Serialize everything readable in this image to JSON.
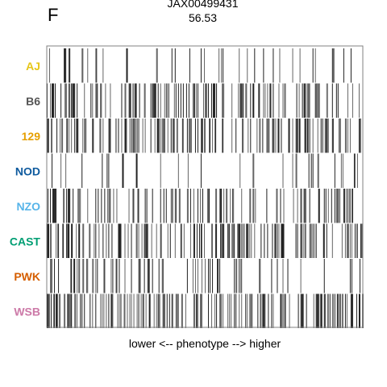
{
  "panel_letter": "F",
  "title_line1": "JAX00499431",
  "title_line2": "56.53",
  "chart_data": {
    "type": "heatmap",
    "title": "JAX00499431",
    "subtitle": "56.53",
    "xlabel": "lower <-- phenotype --> higher",
    "ylabel": "",
    "grid": false,
    "legend": "none",
    "n_columns": 390,
    "rows": [
      {
        "name": "AJ",
        "color": "#E6C619",
        "seed": 11,
        "density": 0.08
      },
      {
        "name": "B6",
        "color": "#555555",
        "seed": 23,
        "density": 0.26
      },
      {
        "name": "129",
        "color": "#E69F00",
        "seed": 37,
        "density": 0.3
      },
      {
        "name": "NOD",
        "color": "#0E5A9E",
        "seed": 41,
        "density": 0.07
      },
      {
        "name": "NZO",
        "color": "#56B4E9",
        "seed": 53,
        "density": 0.22
      },
      {
        "name": "CAST",
        "color": "#009E73",
        "seed": 67,
        "density": 0.28
      },
      {
        "name": "PWK",
        "color": "#D55E00",
        "seed": 79,
        "density": 0.16
      },
      {
        "name": "WSB",
        "color": "#CC79A7",
        "seed": 97,
        "density": 0.36
      }
    ]
  }
}
